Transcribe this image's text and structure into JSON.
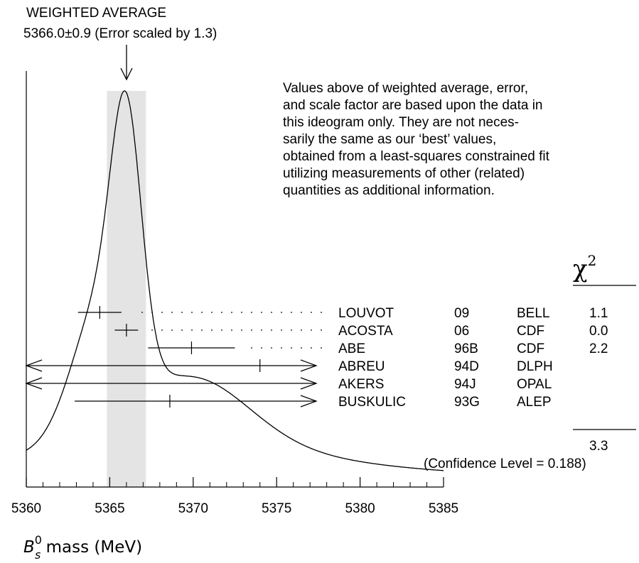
{
  "chart_data": {
    "type": "ideogram",
    "title_line1": "WEIGHTED AVERAGE",
    "title_line2": "5366.0±0.9 (Error scaled by 1.3)",
    "note": [
      "Values above of weighted average, error,",
      "and scale factor are based upon the data in",
      "this ideogram only.  They are not neces-",
      "sarily the same as our ‘best’ values,",
      "obtained from a least-squares constrained fit",
      "utilizing measurements of other (related)",
      "quantities as additional information."
    ],
    "weighted_average": 5366.0,
    "weighted_error": 0.9,
    "scale_factor": 1.3,
    "xlim": [
      5360,
      5385
    ],
    "x_ticks": [
      5360,
      5365,
      5370,
      5375,
      5380,
      5385
    ],
    "x_tick_labels": [
      "5360",
      "5365",
      "5370",
      "5375",
      "5380",
      "5385"
    ],
    "xlabel_main": "B",
    "xlabel_sup": "0",
    "xlabel_sub": "s",
    "xlabel_rest": " mass (MeV)",
    "chi2_header": "χ",
    "chi2_header_sup": "2",
    "measurements": [
      {
        "author": "LOUVOT",
        "year": "09",
        "experiment": "BELL",
        "value": 5364.4,
        "error": 1.3,
        "chi2": "1.1"
      },
      {
        "author": "ACOSTA",
        "year": "06",
        "experiment": "CDF",
        "value": 5366.0,
        "error": 0.7,
        "chi2": "0.0"
      },
      {
        "author": "ABE",
        "year": "96B",
        "experiment": "CDF",
        "value": 5369.9,
        "error": 2.6,
        "chi2": "2.2"
      },
      {
        "author": "ABREU",
        "year": "94D",
        "experiment": "DLPH",
        "value": 5374.0,
        "error": 16.0,
        "chi2": ""
      },
      {
        "author": "AKERS",
        "year": "94J",
        "experiment": "OPAL",
        "value": 5359.0,
        "error": 19.0,
        "chi2": ""
      },
      {
        "author": "BUSKULIC",
        "year": "93G",
        "experiment": "ALEP",
        "value": 5368.6,
        "error": 5.7,
        "chi2": ""
      }
    ],
    "chi2_total": "3.3",
    "confidence_level_text": "(Confidence Level = 0.188)"
  }
}
